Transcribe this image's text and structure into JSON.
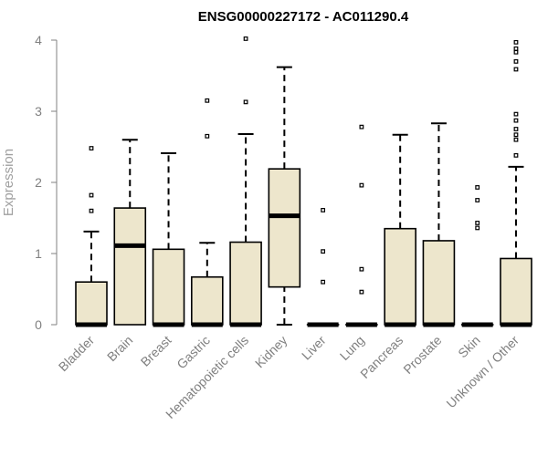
{
  "chart_data": {
    "type": "box",
    "title": "ENSG00000227172 - AC011290.4",
    "xlabel": "",
    "ylabel": "Expression",
    "ylim": [
      0,
      4
    ],
    "yticks": [
      0,
      1,
      2,
      3,
      4
    ],
    "colors": {
      "box_fill": "#ede6cc",
      "stroke": "#000000",
      "axis": "#808080"
    },
    "categories": [
      "Bladder",
      "Brain",
      "Breast",
      "Gastric",
      "Hematopoietic cells",
      "Kidney",
      "Liver",
      "Lung",
      "Pancreas",
      "Prostate",
      "Skin",
      "Unknown / Other"
    ],
    "boxes": [
      {
        "min": 0,
        "q1": 0,
        "median": 0,
        "q3": 0.6,
        "max": 1.31,
        "outliers": [
          1.6,
          1.82,
          2.48
        ]
      },
      {
        "min": 0,
        "q1": 0,
        "median": 1.11,
        "q3": 1.64,
        "max": 2.6,
        "outliers": []
      },
      {
        "min": 0,
        "q1": 0,
        "median": 0,
        "q3": 1.06,
        "max": 2.41,
        "outliers": []
      },
      {
        "min": 0,
        "q1": 0,
        "median": 0,
        "q3": 0.67,
        "max": 1.15,
        "outliers": [
          2.65,
          3.15
        ]
      },
      {
        "min": 0,
        "q1": 0,
        "median": 0,
        "q3": 1.16,
        "max": 2.68,
        "outliers": [
          3.13,
          4.02
        ]
      },
      {
        "min": 0,
        "q1": 0.53,
        "median": 1.53,
        "q3": 2.19,
        "max": 3.62,
        "outliers": []
      },
      {
        "min": 0,
        "q1": 0,
        "median": 0,
        "q3": 0,
        "max": 0,
        "outliers": [
          0.6,
          1.03,
          1.61
        ]
      },
      {
        "min": 0,
        "q1": 0,
        "median": 0,
        "q3": 0,
        "max": 0,
        "outliers": [
          0.46,
          0.78,
          1.96,
          2.78
        ]
      },
      {
        "min": 0,
        "q1": 0,
        "median": 0,
        "q3": 1.35,
        "max": 2.67,
        "outliers": []
      },
      {
        "min": 0,
        "q1": 0,
        "median": 0,
        "q3": 1.18,
        "max": 2.83,
        "outliers": []
      },
      {
        "min": 0,
        "q1": 0,
        "median": 0,
        "q3": 0,
        "max": 0,
        "outliers": [
          1.36,
          1.43,
          1.75,
          1.93
        ]
      },
      {
        "min": 0,
        "q1": 0,
        "median": 0,
        "q3": 0.93,
        "max": 2.22,
        "outliers": [
          2.38,
          2.6,
          2.67,
          2.75,
          2.87,
          2.96,
          3.59,
          3.7,
          3.83,
          3.88,
          3.97
        ]
      }
    ]
  }
}
